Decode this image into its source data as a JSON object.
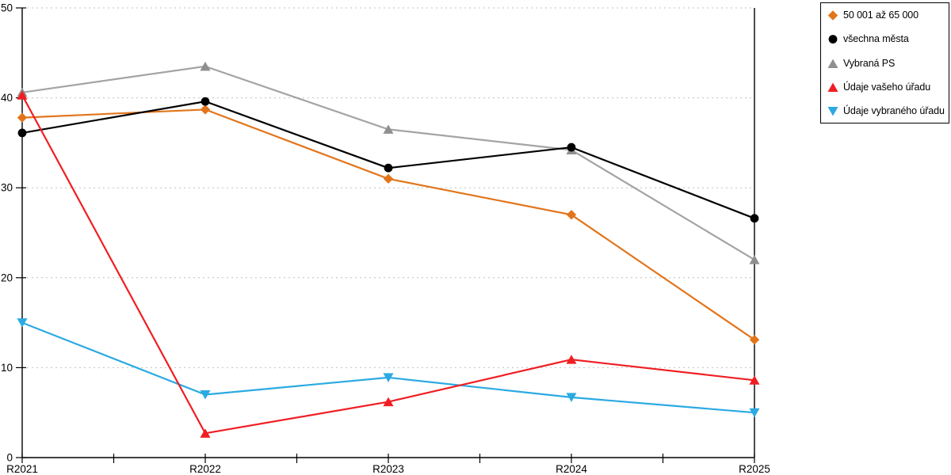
{
  "chart_data": {
    "type": "line",
    "title": "",
    "xlabel": "",
    "ylabel": "",
    "categories": [
      "R2021",
      "R2022",
      "R2023",
      "R2024",
      "R2025"
    ],
    "series": [
      {
        "name": "50 001 až 65 000",
        "marker": "diamond",
        "color": "#E2751C",
        "marker_color": "#E2751C",
        "values": [
          37.8,
          38.7,
          31.0,
          27.0,
          13.1
        ]
      },
      {
        "name": "všechna města",
        "marker": "circle",
        "color": "#000000",
        "marker_color": "#000000",
        "values": [
          36.1,
          39.6,
          32.2,
          34.5,
          26.6
        ]
      },
      {
        "name": "Vybraná PS",
        "marker": "triangle-up",
        "color": "#A4A4A4",
        "marker_color": "#8F8F8F",
        "values": [
          40.6,
          43.5,
          36.5,
          34.2,
          22.0
        ]
      },
      {
        "name": "Údaje vašeho úřadu",
        "marker": "triangle-up",
        "color": "#F01E23",
        "marker_color": "#F01E23",
        "values": [
          40.3,
          2.7,
          6.2,
          10.9,
          8.6
        ]
      },
      {
        "name": "Údaje vybraného úřadu",
        "marker": "triangle-down",
        "color": "#2BAAE2",
        "marker_color": "#2BAAE2",
        "values": [
          15.0,
          7.0,
          8.9,
          6.7,
          5.0
        ]
      }
    ],
    "ylim": [
      0,
      50
    ],
    "yticks": [
      0,
      10,
      20,
      30,
      40,
      50
    ],
    "grid": "horizontal-dotted",
    "x_minor_ticks": true,
    "legend_position": "top-right"
  },
  "colors": {
    "background": "#FFFFFF",
    "gridline": "#C0C0C0",
    "axis": "#000000",
    "legend_border": "#000000"
  }
}
